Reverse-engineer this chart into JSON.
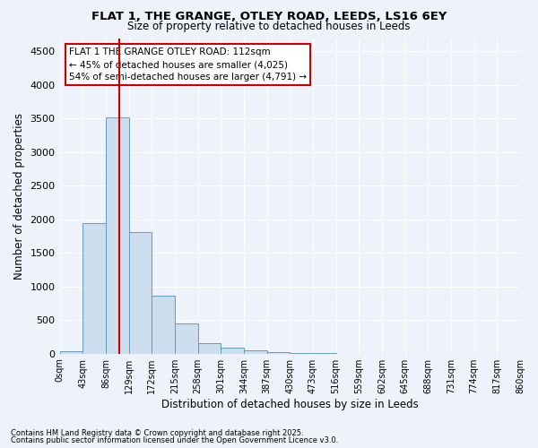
{
  "title": "FLAT 1, THE GRANGE, OTLEY ROAD, LEEDS, LS16 6EY",
  "subtitle": "Size of property relative to detached houses in Leeds",
  "xlabel": "Distribution of detached houses by size in Leeds",
  "ylabel": "Number of detached properties",
  "bar_color": "#ccdded",
  "bar_edge_color": "#6699bb",
  "background_color": "#eef2fa",
  "grid_color": "#ffffff",
  "vline_color": "#cc0000",
  "annotation_text": "FLAT 1 THE GRANGE OTLEY ROAD: 112sqm\n← 45% of detached houses are smaller (4,025)\n54% of semi-detached houses are larger (4,791) →",
  "annotation_box_color": "#ffffff",
  "annotation_box_edge": "#cc0000",
  "bins": [
    "0sqm",
    "43sqm",
    "86sqm",
    "129sqm",
    "172sqm",
    "215sqm",
    "258sqm",
    "301sqm",
    "344sqm",
    "387sqm",
    "430sqm",
    "473sqm",
    "516sqm",
    "559sqm",
    "602sqm",
    "645sqm",
    "688sqm",
    "731sqm",
    "774sqm",
    "817sqm",
    "860sqm"
  ],
  "values": [
    30,
    1950,
    3520,
    1810,
    860,
    450,
    150,
    95,
    55,
    25,
    10,
    3,
    0,
    0,
    0,
    0,
    0,
    0,
    0,
    0
  ],
  "ylim": [
    0,
    4700
  ],
  "yticks": [
    0,
    500,
    1000,
    1500,
    2000,
    2500,
    3000,
    3500,
    4000,
    4500
  ],
  "footnote1": "Contains HM Land Registry data © Crown copyright and database right 2025.",
  "footnote2": "Contains public sector information licensed under the Open Government Licence v3.0."
}
